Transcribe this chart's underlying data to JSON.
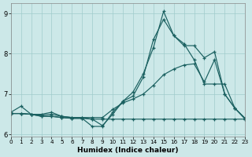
{
  "xlabel": "Humidex (Indice chaleur)",
  "background_color": "#cce8e8",
  "grid_color": "#a0cccc",
  "line_color": "#1a6060",
  "xlim": [
    0,
    23
  ],
  "ylim": [
    5.95,
    9.25
  ],
  "yticks": [
    6,
    7,
    8,
    9
  ],
  "xticks": [
    0,
    1,
    2,
    3,
    4,
    5,
    6,
    7,
    8,
    9,
    10,
    11,
    12,
    13,
    14,
    15,
    16,
    17,
    18,
    19,
    20,
    21,
    22,
    23
  ],
  "series": [
    {
      "x": [
        0,
        1,
        2,
        3,
        4,
        5,
        6,
        7,
        8,
        9,
        10,
        11,
        12,
        13,
        14,
        15,
        16,
        17,
        18,
        19,
        20,
        21,
        22,
        23
      ],
      "y": [
        6.55,
        6.7,
        6.5,
        6.5,
        6.55,
        6.45,
        6.42,
        6.42,
        6.38,
        6.22,
        6.5,
        6.82,
        7.05,
        7.5,
        8.15,
        9.05,
        8.45,
        8.2,
        8.2,
        7.9,
        8.05,
        7.0,
        6.65,
        6.4
      ]
    },
    {
      "x": [
        0,
        1,
        2,
        3,
        4,
        5,
        6,
        7,
        8,
        9,
        10,
        11,
        12,
        13,
        14,
        15,
        16,
        17,
        18,
        19,
        20,
        21,
        22,
        23
      ],
      "y": [
        6.52,
        6.52,
        6.5,
        6.48,
        6.5,
        6.45,
        6.42,
        6.42,
        6.42,
        6.42,
        6.62,
        6.78,
        6.88,
        7.0,
        7.22,
        7.48,
        7.62,
        7.72,
        7.75,
        7.3,
        7.85,
        7.0,
        6.65,
        6.4
      ]
    },
    {
      "x": [
        0,
        1,
        2,
        3,
        4,
        5,
        6,
        7,
        8,
        9,
        10,
        11,
        12,
        13,
        14,
        15,
        16,
        17,
        18,
        19,
        20,
        21,
        22,
        23
      ],
      "y": [
        6.52,
        6.52,
        6.5,
        6.45,
        6.45,
        6.42,
        6.4,
        6.4,
        6.38,
        6.38,
        6.38,
        6.38,
        6.38,
        6.38,
        6.38,
        6.38,
        6.38,
        6.38,
        6.38,
        6.38,
        6.38,
        6.38,
        6.38,
        6.38
      ]
    },
    {
      "x": [
        0,
        1,
        2,
        3,
        4,
        5,
        6,
        7,
        8,
        9,
        10,
        11,
        12,
        13,
        14,
        15,
        16,
        17,
        18,
        19,
        20,
        21,
        22,
        23
      ],
      "y": [
        6.52,
        6.52,
        6.5,
        6.45,
        6.45,
        6.42,
        6.4,
        6.4,
        6.2,
        6.2,
        6.55,
        6.82,
        6.95,
        7.42,
        8.35,
        8.85,
        8.45,
        8.25,
        7.85,
        7.25,
        7.25,
        7.25,
        6.65,
        6.38
      ]
    }
  ]
}
